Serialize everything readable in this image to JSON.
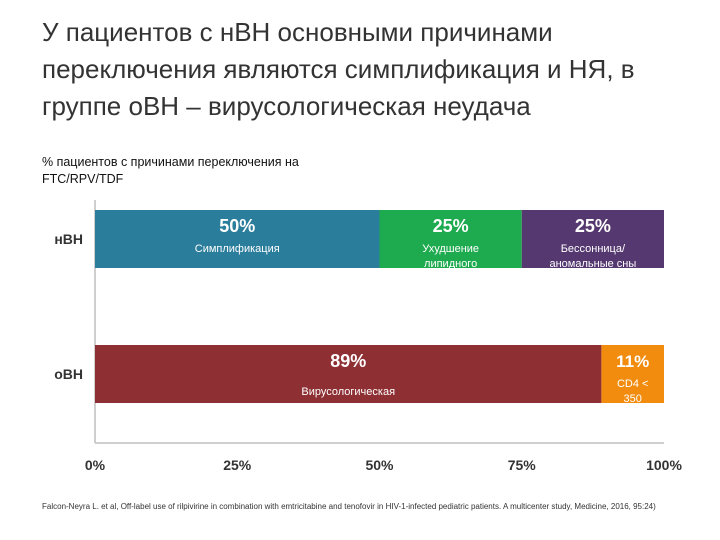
{
  "chart_data": {
    "type": "bar",
    "orientation": "horizontal",
    "stacked": true,
    "title": "У пациентов с нВН основными причинами переключения являются симплификация и НЯ, в группе оВН – вирусологическая неудача",
    "subtitle": "% пациентов с причинами переключения на FTC/RPV/TDF",
    "categories": [
      "нВН",
      "оВН"
    ],
    "xlim": [
      0,
      100
    ],
    "x_ticks": [
      "0%",
      "25%",
      "50%",
      "75%",
      "100%"
    ],
    "bars": [
      {
        "category": "нВН",
        "segments": [
          {
            "value": 50,
            "pct_label": "50%",
            "label": "Симплификация",
            "color": "#2b7d9c"
          },
          {
            "value": 25,
            "pct_label": "25%",
            "label": "Ухудшение липидного профиля",
            "color": "#1eaa4f"
          },
          {
            "value": 25,
            "pct_label": "25%",
            "label": "Бессонница/ аномальные сны",
            "color": "#54386f"
          }
        ]
      },
      {
        "category": "оВН",
        "segments": [
          {
            "value": 89,
            "pct_label": "89%",
            "label": "Вирусологическая неудача",
            "color": "#8e2f33"
          },
          {
            "value": 11,
            "pct_label": "11%",
            "label": "CD4 < 350",
            "color": "#f28c0f"
          }
        ]
      }
    ],
    "grid": false,
    "legend": "none"
  },
  "footnote": "Falcon-Neyra L. et al, Off-label use of rilpivirine in combination with emtricitabine and tenofovir in HIV-1-infected pediatric patients. A multicenter study, Medicine, 2016, 95:24)"
}
